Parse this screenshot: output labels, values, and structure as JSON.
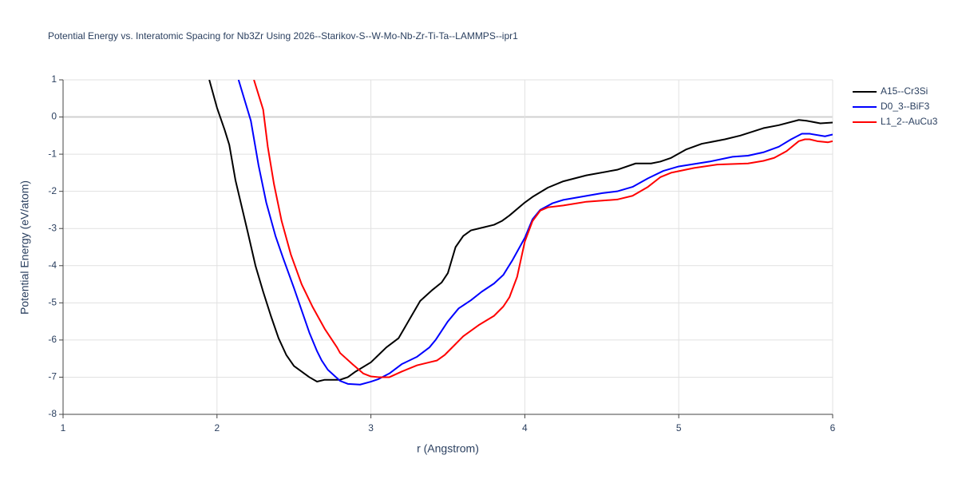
{
  "chart_data": {
    "type": "line",
    "title": "Potential Energy vs. Interatomic Spacing for Nb3Zr Using 2026--Starikov-S--W-Mo-Nb-Zr-Ti-Ta--LAMMPS--ipr1",
    "x_label": "r (Angstrom)",
    "y_label": "Potential Energy (eV/atom)",
    "xlim": [
      1,
      6
    ],
    "xticks": [
      1,
      2,
      3,
      4,
      5,
      6
    ],
    "ylim": [
      -8,
      1
    ],
    "yticks": [
      -8,
      -7,
      -6,
      -5,
      -4,
      -3,
      -2,
      -1,
      0,
      1
    ],
    "grid": true,
    "legend": "top-right",
    "series": [
      {
        "name": "A15--Cr3Si",
        "color": "#000000",
        "x": [
          1.95,
          2.0,
          2.05,
          2.08,
          2.12,
          2.2,
          2.25,
          2.3,
          2.35,
          2.4,
          2.45,
          2.5,
          2.55,
          2.6,
          2.65,
          2.7,
          2.8,
          2.85,
          2.9,
          3.0,
          3.05,
          3.1,
          3.18,
          3.25,
          3.32,
          3.4,
          3.46,
          3.5,
          3.55,
          3.6,
          3.65,
          3.7,
          3.8,
          3.85,
          3.9,
          4.0,
          4.05,
          4.15,
          4.25,
          4.4,
          4.6,
          4.72,
          4.82,
          4.88,
          4.95,
          5.05,
          5.15,
          5.3,
          5.4,
          5.55,
          5.65,
          5.78,
          5.83,
          5.92,
          6.0
        ],
        "values": [
          1.0,
          0.25,
          -0.35,
          -0.75,
          -1.7,
          -3.1,
          -4.0,
          -4.7,
          -5.35,
          -5.95,
          -6.4,
          -6.7,
          -6.85,
          -7.0,
          -7.12,
          -7.07,
          -7.07,
          -7.0,
          -6.85,
          -6.6,
          -6.4,
          -6.2,
          -5.95,
          -5.45,
          -4.95,
          -4.65,
          -4.45,
          -4.2,
          -3.5,
          -3.2,
          -3.05,
          -3.0,
          -2.9,
          -2.8,
          -2.65,
          -2.3,
          -2.15,
          -1.9,
          -1.73,
          -1.57,
          -1.42,
          -1.25,
          -1.25,
          -1.2,
          -1.1,
          -0.87,
          -0.72,
          -0.6,
          -0.5,
          -0.3,
          -0.22,
          -0.08,
          -0.1,
          -0.17,
          -0.15
        ]
      },
      {
        "name": "D0_3--BiF3",
        "color": "#0000ff",
        "x": [
          2.14,
          2.22,
          2.27,
          2.32,
          2.38,
          2.43,
          2.5,
          2.55,
          2.6,
          2.65,
          2.68,
          2.72,
          2.8,
          2.85,
          2.93,
          3.0,
          3.05,
          3.12,
          3.2,
          3.3,
          3.38,
          3.42,
          3.5,
          3.57,
          3.65,
          3.72,
          3.8,
          3.86,
          3.92,
          4.0,
          4.05,
          4.1,
          4.18,
          4.25,
          4.5,
          4.6,
          4.7,
          4.8,
          4.9,
          5.0,
          5.2,
          5.35,
          5.45,
          5.55,
          5.65,
          5.73,
          5.8,
          5.85,
          5.95,
          6.0
        ],
        "values": [
          1.0,
          -0.1,
          -1.3,
          -2.3,
          -3.2,
          -3.8,
          -4.6,
          -5.2,
          -5.8,
          -6.3,
          -6.55,
          -6.8,
          -7.1,
          -7.18,
          -7.2,
          -7.12,
          -7.05,
          -6.9,
          -6.65,
          -6.45,
          -6.2,
          -6.0,
          -5.5,
          -5.15,
          -4.93,
          -4.7,
          -4.48,
          -4.25,
          -3.85,
          -3.25,
          -2.75,
          -2.5,
          -2.32,
          -2.23,
          -2.05,
          -2.0,
          -1.88,
          -1.65,
          -1.45,
          -1.33,
          -1.2,
          -1.07,
          -1.04,
          -0.95,
          -0.8,
          -0.6,
          -0.45,
          -0.45,
          -0.52,
          -0.47
        ]
      },
      {
        "name": "L1_2--AuCu3",
        "color": "#ff0000",
        "x": [
          2.24,
          2.3,
          2.33,
          2.37,
          2.42,
          2.48,
          2.55,
          2.62,
          2.7,
          2.78,
          2.8,
          2.88,
          2.95,
          3.0,
          3.05,
          3.12,
          3.2,
          3.3,
          3.38,
          3.43,
          3.48,
          3.54,
          3.6,
          3.7,
          3.8,
          3.86,
          3.9,
          3.95,
          4.0,
          4.05,
          4.1,
          4.15,
          4.25,
          4.4,
          4.6,
          4.7,
          4.8,
          4.88,
          4.95,
          5.1,
          5.25,
          5.45,
          5.55,
          5.62,
          5.7,
          5.78,
          5.82,
          5.85,
          5.9,
          5.97,
          6.0
        ],
        "values": [
          1.0,
          0.2,
          -0.8,
          -1.8,
          -2.8,
          -3.7,
          -4.5,
          -5.1,
          -5.7,
          -6.2,
          -6.35,
          -6.65,
          -6.9,
          -6.98,
          -7.0,
          -7.0,
          -6.85,
          -6.68,
          -6.6,
          -6.55,
          -6.4,
          -6.15,
          -5.9,
          -5.6,
          -5.35,
          -5.1,
          -4.85,
          -4.3,
          -3.35,
          -2.8,
          -2.52,
          -2.43,
          -2.38,
          -2.28,
          -2.22,
          -2.12,
          -1.88,
          -1.62,
          -1.5,
          -1.37,
          -1.28,
          -1.25,
          -1.18,
          -1.1,
          -0.92,
          -0.65,
          -0.6,
          -0.6,
          -0.65,
          -0.68,
          -0.65
        ]
      }
    ]
  }
}
